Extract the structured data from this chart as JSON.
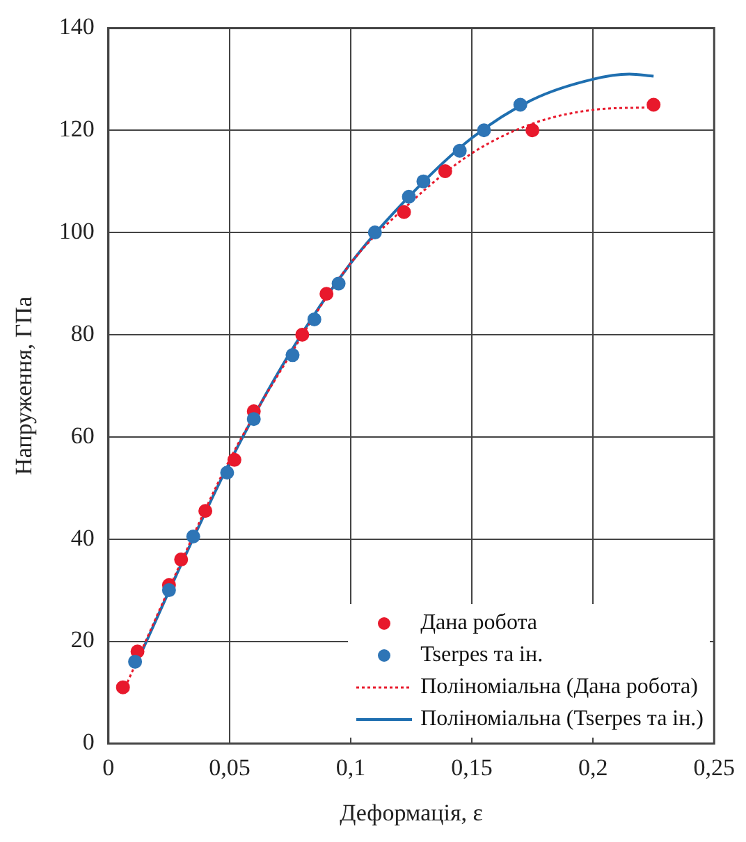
{
  "chart_data": {
    "type": "scatter",
    "xlabel": "Деформація, ε",
    "ylabel": "Напруження, ГПа",
    "xlim": [
      0,
      0.25
    ],
    "xticks": [
      0,
      {
        "value": 0.05,
        "label": "0,05"
      },
      {
        "value": 0.1,
        "label": "0,1"
      },
      {
        "value": 0.15,
        "label": "0,15"
      },
      {
        "value": 0.2,
        "label": "0,2"
      },
      {
        "value": 0.25,
        "label": "0,25"
      }
    ],
    "ylim": [
      0,
      140
    ],
    "yticks": [
      0,
      20,
      40,
      60,
      80,
      100,
      120,
      140
    ],
    "grid": true,
    "legend": "bottom right",
    "series": [
      {
        "name": "Дана робота",
        "marker": "circle",
        "color": "#e8192c",
        "x": [
          0.006,
          0.012,
          0.025,
          0.03,
          0.04,
          0.052,
          0.06,
          0.08,
          0.09,
          0.122,
          0.139,
          0.175,
          0.225
        ],
        "values": [
          11,
          18,
          31,
          36,
          45.5,
          55.5,
          65,
          80,
          88,
          104,
          112,
          120,
          125
        ]
      },
      {
        "name": "Tserpes та ін.",
        "marker": "circle",
        "color": "#2e75b6",
        "x": [
          0.011,
          0.025,
          0.035,
          0.049,
          0.06,
          0.076,
          0.085,
          0.095,
          0.11,
          0.124,
          0.13,
          0.145,
          0.155,
          0.17
        ],
        "values": [
          16,
          30,
          40.5,
          53,
          63.5,
          76,
          83,
          90,
          100,
          107,
          110,
          116,
          120,
          125
        ]
      },
      {
        "name": "Поліноміальна (Дана робота)",
        "type": "line",
        "line_style": "dotted",
        "marker": "none",
        "color": "#e8192c",
        "x": [
          0.006,
          0.03,
          0.05,
          0.075,
          0.1,
          0.125,
          0.15,
          0.175,
          0.2,
          0.225
        ],
        "values": [
          10,
          35.5,
          55.5,
          76,
          94,
          106,
          115.5,
          121.3,
          124,
          124.5
        ]
      },
      {
        "name": "Поліноміальна (Tserpes та ін.)",
        "type": "line",
        "line_style": "solid",
        "marker": "none",
        "color": "#1f6fb0",
        "x": [
          0.011,
          0.03,
          0.05,
          0.075,
          0.1,
          0.125,
          0.15,
          0.175,
          0.2,
          0.215,
          0.225
        ],
        "values": [
          15,
          35,
          55,
          76.5,
          94,
          107.5,
          118.5,
          126,
          130,
          131,
          130.6
        ]
      }
    ]
  }
}
